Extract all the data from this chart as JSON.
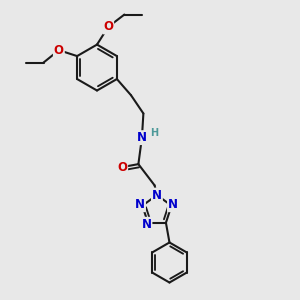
{
  "bg_color": "#e8e8e8",
  "bond_color": "#1a1a1a",
  "bond_width": 1.5,
  "N_color": "#0000cc",
  "O_color": "#cc0000",
  "H_color": "#4d9999",
  "font_size_atom": 8.5,
  "font_size_small": 7.0,
  "xlim": [
    0,
    10
  ],
  "ylim": [
    0,
    10
  ]
}
